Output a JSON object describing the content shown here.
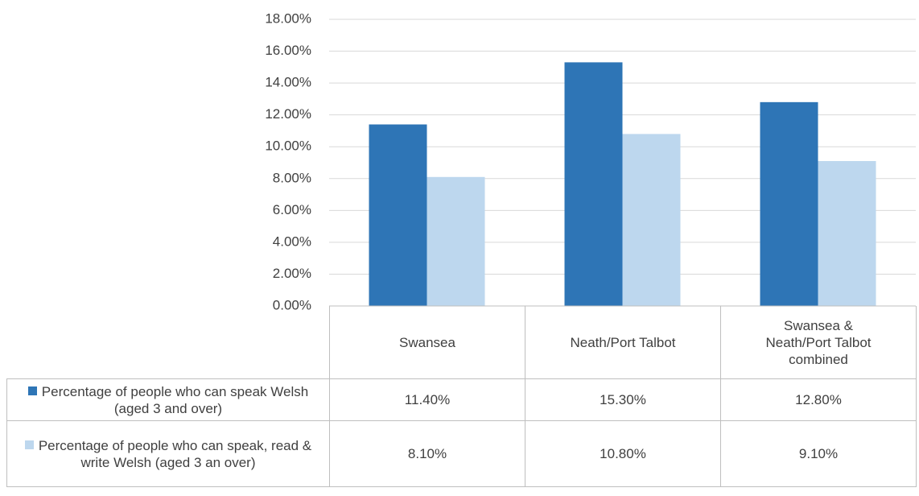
{
  "chart_data": {
    "type": "bar",
    "categories": [
      "Swansea",
      "Neath/Port Talbot",
      "Swansea & Neath/Port Talbot combined"
    ],
    "series": [
      {
        "name": "Percentage of people who can speak Welsh (aged 3 and over)",
        "color": "#2e75b6",
        "values": [
          11.4,
          15.3,
          12.8
        ],
        "value_labels": [
          "11.40%",
          "15.30%",
          "12.80%"
        ]
      },
      {
        "name": "Percentage of people who can speak, read & write Welsh (aged 3 an over)",
        "color": "#bdd7ee",
        "values": [
          8.1,
          10.8,
          9.1
        ],
        "value_labels": [
          "8.10%",
          "10.80%",
          "9.10%"
        ]
      }
    ],
    "ylim": [
      0,
      18
    ],
    "yticks": [
      {
        "value": 0,
        "label": "0.00%"
      },
      {
        "value": 2,
        "label": "2.00%"
      },
      {
        "value": 4,
        "label": "4.00%"
      },
      {
        "value": 6,
        "label": "6.00%"
      },
      {
        "value": 8,
        "label": "8.00%"
      },
      {
        "value": 10,
        "label": "10.00%"
      },
      {
        "value": 12,
        "label": "12.00%"
      },
      {
        "value": 14,
        "label": "14.00%"
      },
      {
        "value": 16,
        "label": "16.00%"
      },
      {
        "value": 18,
        "label": "18.00%"
      }
    ],
    "grid": true
  }
}
